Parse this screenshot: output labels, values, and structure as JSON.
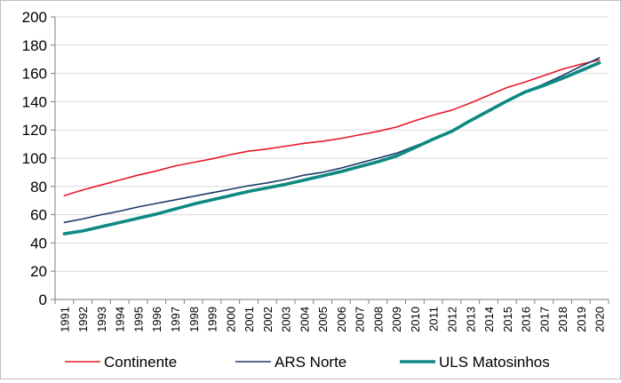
{
  "chart_data": {
    "type": "line",
    "title": "",
    "xlabel": "",
    "ylabel": "",
    "x": [
      "1991",
      "1992",
      "1993",
      "1994",
      "1995",
      "1996",
      "1997",
      "1998",
      "1999",
      "2000",
      "2001",
      "2002",
      "2003",
      "2004",
      "2005",
      "2006",
      "2007",
      "2008",
      "2009",
      "2010",
      "2011",
      "2012",
      "2013",
      "2014",
      "2015",
      "2016",
      "2017",
      "2018",
      "2019",
      "2020"
    ],
    "ylim": [
      0,
      200
    ],
    "yticks": [
      0,
      20,
      40,
      60,
      80,
      100,
      120,
      140,
      160,
      180,
      200
    ],
    "grid": true,
    "legend": "bottom",
    "series": [
      {
        "name": "Continente",
        "color": "#e8192c",
        "values": [
          73.5,
          77.5,
          81,
          84.5,
          88,
          91,
          94.5,
          97,
          99.5,
          102.5,
          105,
          106.5,
          108.5,
          110.5,
          112,
          114,
          116.5,
          119,
          122,
          126.5,
          130.5,
          134,
          139,
          144.5,
          150,
          154,
          158.5,
          163,
          166.5,
          169.5
        ]
      },
      {
        "name": "ARS Norte",
        "color": "#1f3a68",
        "values": [
          54.5,
          57,
          60,
          62.5,
          65.5,
          68,
          70.5,
          73,
          75.5,
          78,
          80.5,
          82.5,
          85,
          88,
          90,
          93,
          96.5,
          100,
          103.5,
          108.5,
          113.5,
          119,
          126,
          133.5,
          140.5,
          147,
          152.5,
          158.5,
          165,
          171
        ]
      },
      {
        "name": "ULS Matosinhos",
        "color": "#0e8a82",
        "values": [
          46.5,
          48.5,
          51.5,
          54.5,
          57.5,
          60.5,
          64,
          67.5,
          70.5,
          73.5,
          76.5,
          79,
          81.5,
          84.5,
          87.5,
          90.5,
          94,
          97.5,
          101.5,
          107.5,
          113.5,
          119,
          126.5,
          133.5,
          140.5,
          147,
          151.5,
          156.5,
          162,
          167.5
        ]
      }
    ]
  }
}
